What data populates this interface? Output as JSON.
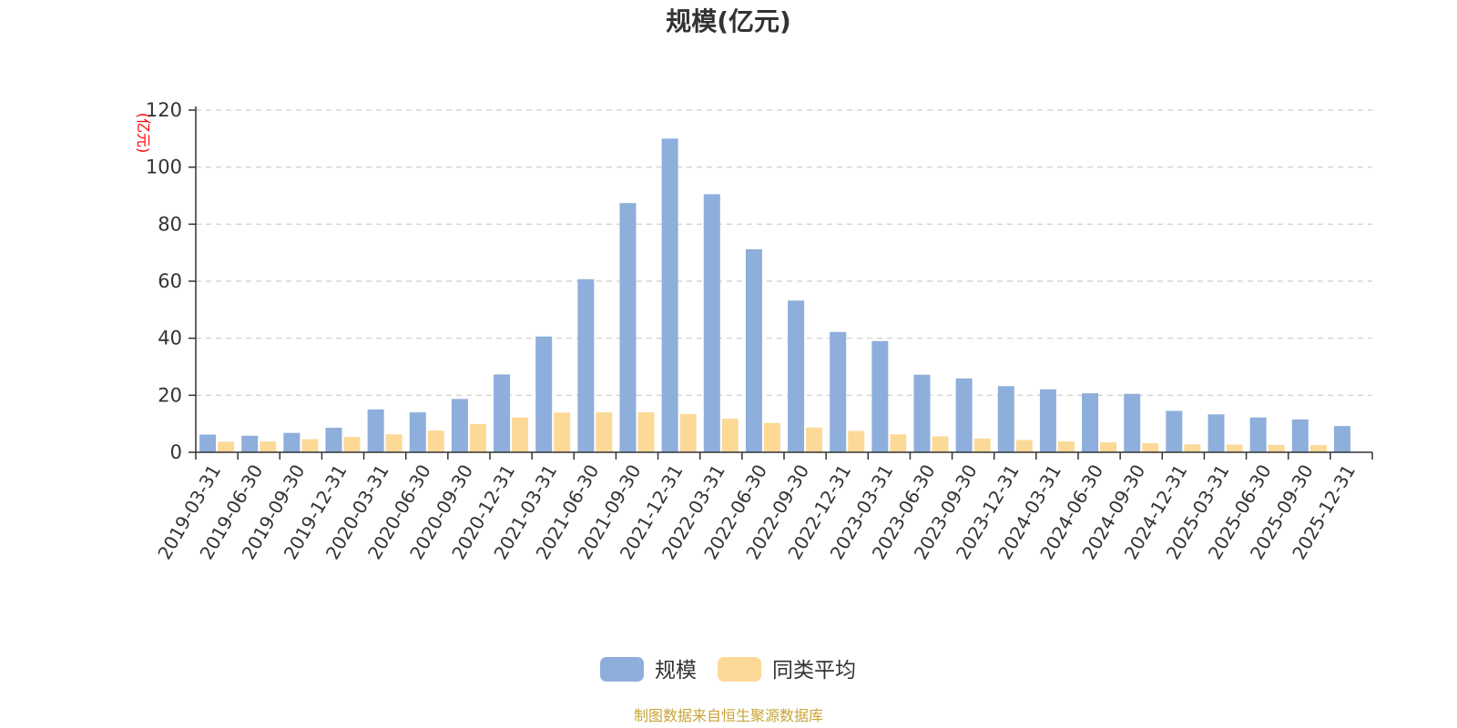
{
  "chart_data": {
    "type": "bar",
    "title": "规模(亿元)",
    "ylabel": "(亿元)",
    "ylim": [
      0,
      120
    ],
    "yticks": [
      0,
      20,
      40,
      60,
      80,
      100,
      120
    ],
    "grid": true,
    "legend_position": "bottom",
    "categories": [
      "2019-03-31",
      "2019-06-30",
      "2019-09-30",
      "2019-12-31",
      "2020-03-31",
      "2020-06-30",
      "2020-09-30",
      "2020-12-31",
      "2021-03-31",
      "2021-06-30",
      "2021-09-30",
      "2021-12-31",
      "2022-03-31",
      "2022-06-30",
      "2022-09-30",
      "2022-12-31",
      "2023-03-31",
      "2023-06-30",
      "2023-09-30",
      "2023-12-31",
      "2024-03-31",
      "2024-06-30",
      "2024-09-30",
      "2024-12-31",
      "2025-03-31",
      "2025-06-30",
      "2025-09-30",
      "2025-12-31"
    ],
    "series": [
      {
        "name": "规模",
        "color": "#8eaedb",
        "values": [
          6.2,
          5.8,
          6.8,
          8.6,
          15.0,
          14.0,
          18.7,
          27.3,
          40.6,
          60.7,
          87.4,
          110.0,
          90.5,
          71.2,
          53.2,
          42.2,
          39.0,
          27.2,
          25.9,
          23.2,
          22.1,
          20.7,
          20.5,
          14.5,
          13.3,
          12.2,
          11.5,
          9.2
        ]
      },
      {
        "name": "同类平均",
        "color": "#fdd998",
        "values": [
          3.7,
          3.8,
          4.6,
          5.4,
          6.3,
          7.6,
          9.9,
          12.2,
          13.9,
          14.0,
          14.0,
          13.4,
          11.8,
          10.3,
          8.7,
          7.5,
          6.3,
          5.6,
          4.8,
          4.3,
          3.8,
          3.5,
          3.2,
          2.8,
          2.7,
          2.6,
          2.5,
          null
        ]
      }
    ],
    "source": "制图数据来自恒生聚源数据库",
    "colors": {
      "axis": "#333333",
      "grid": "#cccccc",
      "unit": "#ff0000",
      "source": "#c8a437"
    }
  }
}
